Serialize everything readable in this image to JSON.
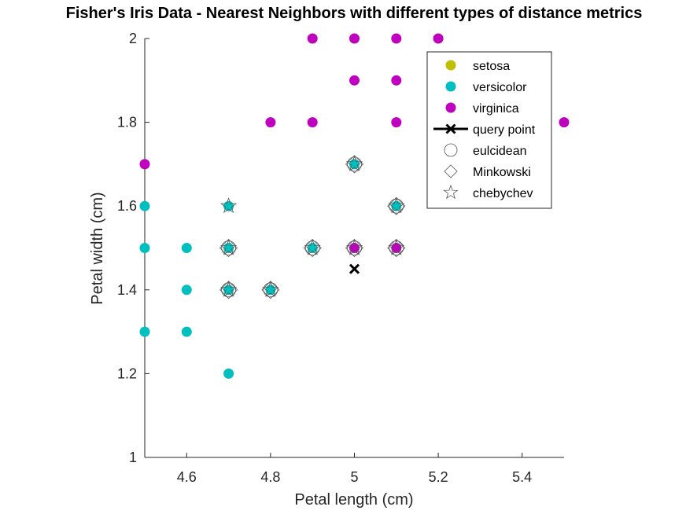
{
  "chart_data": {
    "type": "scatter",
    "title": "Fisher's Iris Data - Nearest Neighbors with different types of distance metrics",
    "xlabel": "Petal length (cm)",
    "ylabel": "Petal width (cm)",
    "xlim": [
      4.5,
      5.5
    ],
    "ylim": [
      1,
      2
    ],
    "x_ticks": [
      "4.6",
      "4.8",
      "5",
      "5.2",
      "5.4"
    ],
    "x_tick_values": [
      4.6,
      4.8,
      5.0,
      5.2,
      5.4
    ],
    "y_ticks": [
      "1",
      "1.2",
      "1.4",
      "1.6",
      "1.8",
      "2"
    ],
    "y_tick_values": [
      1.0,
      1.2,
      1.4,
      1.6,
      1.8,
      2.0
    ],
    "grid": false,
    "legend_position": "top-right",
    "series": [
      {
        "name": "setosa",
        "color": "#bfbf00",
        "marker": "filled-circle",
        "points": []
      },
      {
        "name": "versicolor",
        "color": "#00bfbf",
        "marker": "filled-circle",
        "points": [
          [
            4.5,
            1.3
          ],
          [
            4.5,
            1.5
          ],
          [
            4.5,
            1.6
          ],
          [
            4.6,
            1.3
          ],
          [
            4.6,
            1.4
          ],
          [
            4.6,
            1.5
          ],
          [
            4.7,
            1.2
          ],
          [
            4.7,
            1.4
          ],
          [
            4.7,
            1.5
          ],
          [
            4.7,
            1.6
          ],
          [
            4.8,
            1.4
          ],
          [
            4.9,
            1.5
          ],
          [
            5.0,
            1.7
          ],
          [
            5.1,
            1.6
          ]
        ]
      },
      {
        "name": "virginica",
        "color": "#bf00bf",
        "marker": "filled-circle",
        "points": [
          [
            4.5,
            1.7
          ],
          [
            4.8,
            1.8
          ],
          [
            4.9,
            1.8
          ],
          [
            4.9,
            2.0
          ],
          [
            5.0,
            1.5
          ],
          [
            5.0,
            1.9
          ],
          [
            5.0,
            2.0
          ],
          [
            5.1,
            1.5
          ],
          [
            5.1,
            1.8
          ],
          [
            5.1,
            1.9
          ],
          [
            5.1,
            2.0
          ],
          [
            5.2,
            2.0
          ],
          [
            5.5,
            1.8
          ]
        ]
      },
      {
        "name": "query point",
        "color": "#000000",
        "marker": "x",
        "points": [
          [
            5.0,
            1.45
          ]
        ]
      },
      {
        "name": "eulcidean",
        "color": "#000000",
        "marker": "open-circle",
        "points": [
          [
            4.7,
            1.4
          ],
          [
            4.7,
            1.5
          ],
          [
            4.8,
            1.4
          ],
          [
            4.9,
            1.5
          ],
          [
            5.0,
            1.5
          ],
          [
            5.0,
            1.7
          ],
          [
            5.1,
            1.5
          ],
          [
            5.1,
            1.6
          ]
        ]
      },
      {
        "name": "Minkowski",
        "color": "#000000",
        "marker": "open-diamond",
        "points": [
          [
            4.7,
            1.4
          ],
          [
            4.7,
            1.5
          ],
          [
            4.8,
            1.4
          ],
          [
            4.9,
            1.5
          ],
          [
            5.0,
            1.5
          ],
          [
            5.0,
            1.7
          ],
          [
            5.1,
            1.5
          ],
          [
            5.1,
            1.6
          ]
        ]
      },
      {
        "name": "chebychev",
        "color": "#000000",
        "marker": "open-star",
        "points": [
          [
            4.7,
            1.4
          ],
          [
            4.7,
            1.5
          ],
          [
            4.7,
            1.6
          ],
          [
            4.8,
            1.4
          ],
          [
            4.9,
            1.5
          ],
          [
            5.0,
            1.5
          ],
          [
            5.0,
            1.7
          ],
          [
            5.1,
            1.5
          ],
          [
            5.1,
            1.6
          ]
        ]
      }
    ]
  }
}
